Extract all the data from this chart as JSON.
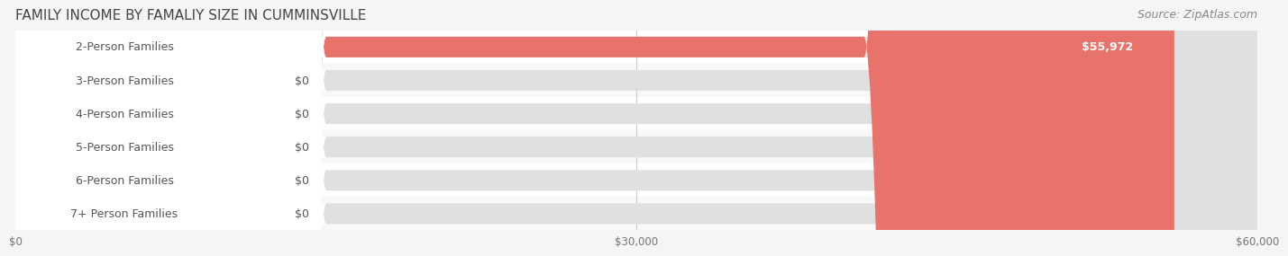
{
  "title": "FAMILY INCOME BY FAMALIY SIZE IN CUMMINSVILLE",
  "source": "Source: ZipAtlas.com",
  "categories": [
    "2-Person Families",
    "3-Person Families",
    "4-Person Families",
    "5-Person Families",
    "6-Person Families",
    "7+ Person Families"
  ],
  "values": [
    55972,
    0,
    0,
    0,
    0,
    0
  ],
  "bar_colors": [
    "#e8736a",
    "#9ab8d8",
    "#c4a0c8",
    "#6ec8c0",
    "#a8b0d8",
    "#f0a0b8"
  ],
  "label_colors": [
    "#e8736a",
    "#9ab8d8",
    "#c4a0c8",
    "#6ec8c0",
    "#a8b0d8",
    "#f0a0b8"
  ],
  "value_labels": [
    "$55,972",
    "$0",
    "$0",
    "$0",
    "$0",
    "$0"
  ],
  "xlim": [
    0,
    60000
  ],
  "xticks": [
    0,
    30000,
    60000
  ],
  "xtick_labels": [
    "$0",
    "$30,000",
    "$60,000"
  ],
  "background_color": "#f5f5f5",
  "bar_bg_color": "#e8e8e8",
  "title_fontsize": 11,
  "source_fontsize": 9,
  "label_fontsize": 9,
  "value_fontsize": 9,
  "bar_height": 0.62,
  "row_bg_colors": [
    "#ffffff",
    "#f8f8f8",
    "#ffffff",
    "#f8f8f8",
    "#ffffff",
    "#f8f8f8"
  ]
}
